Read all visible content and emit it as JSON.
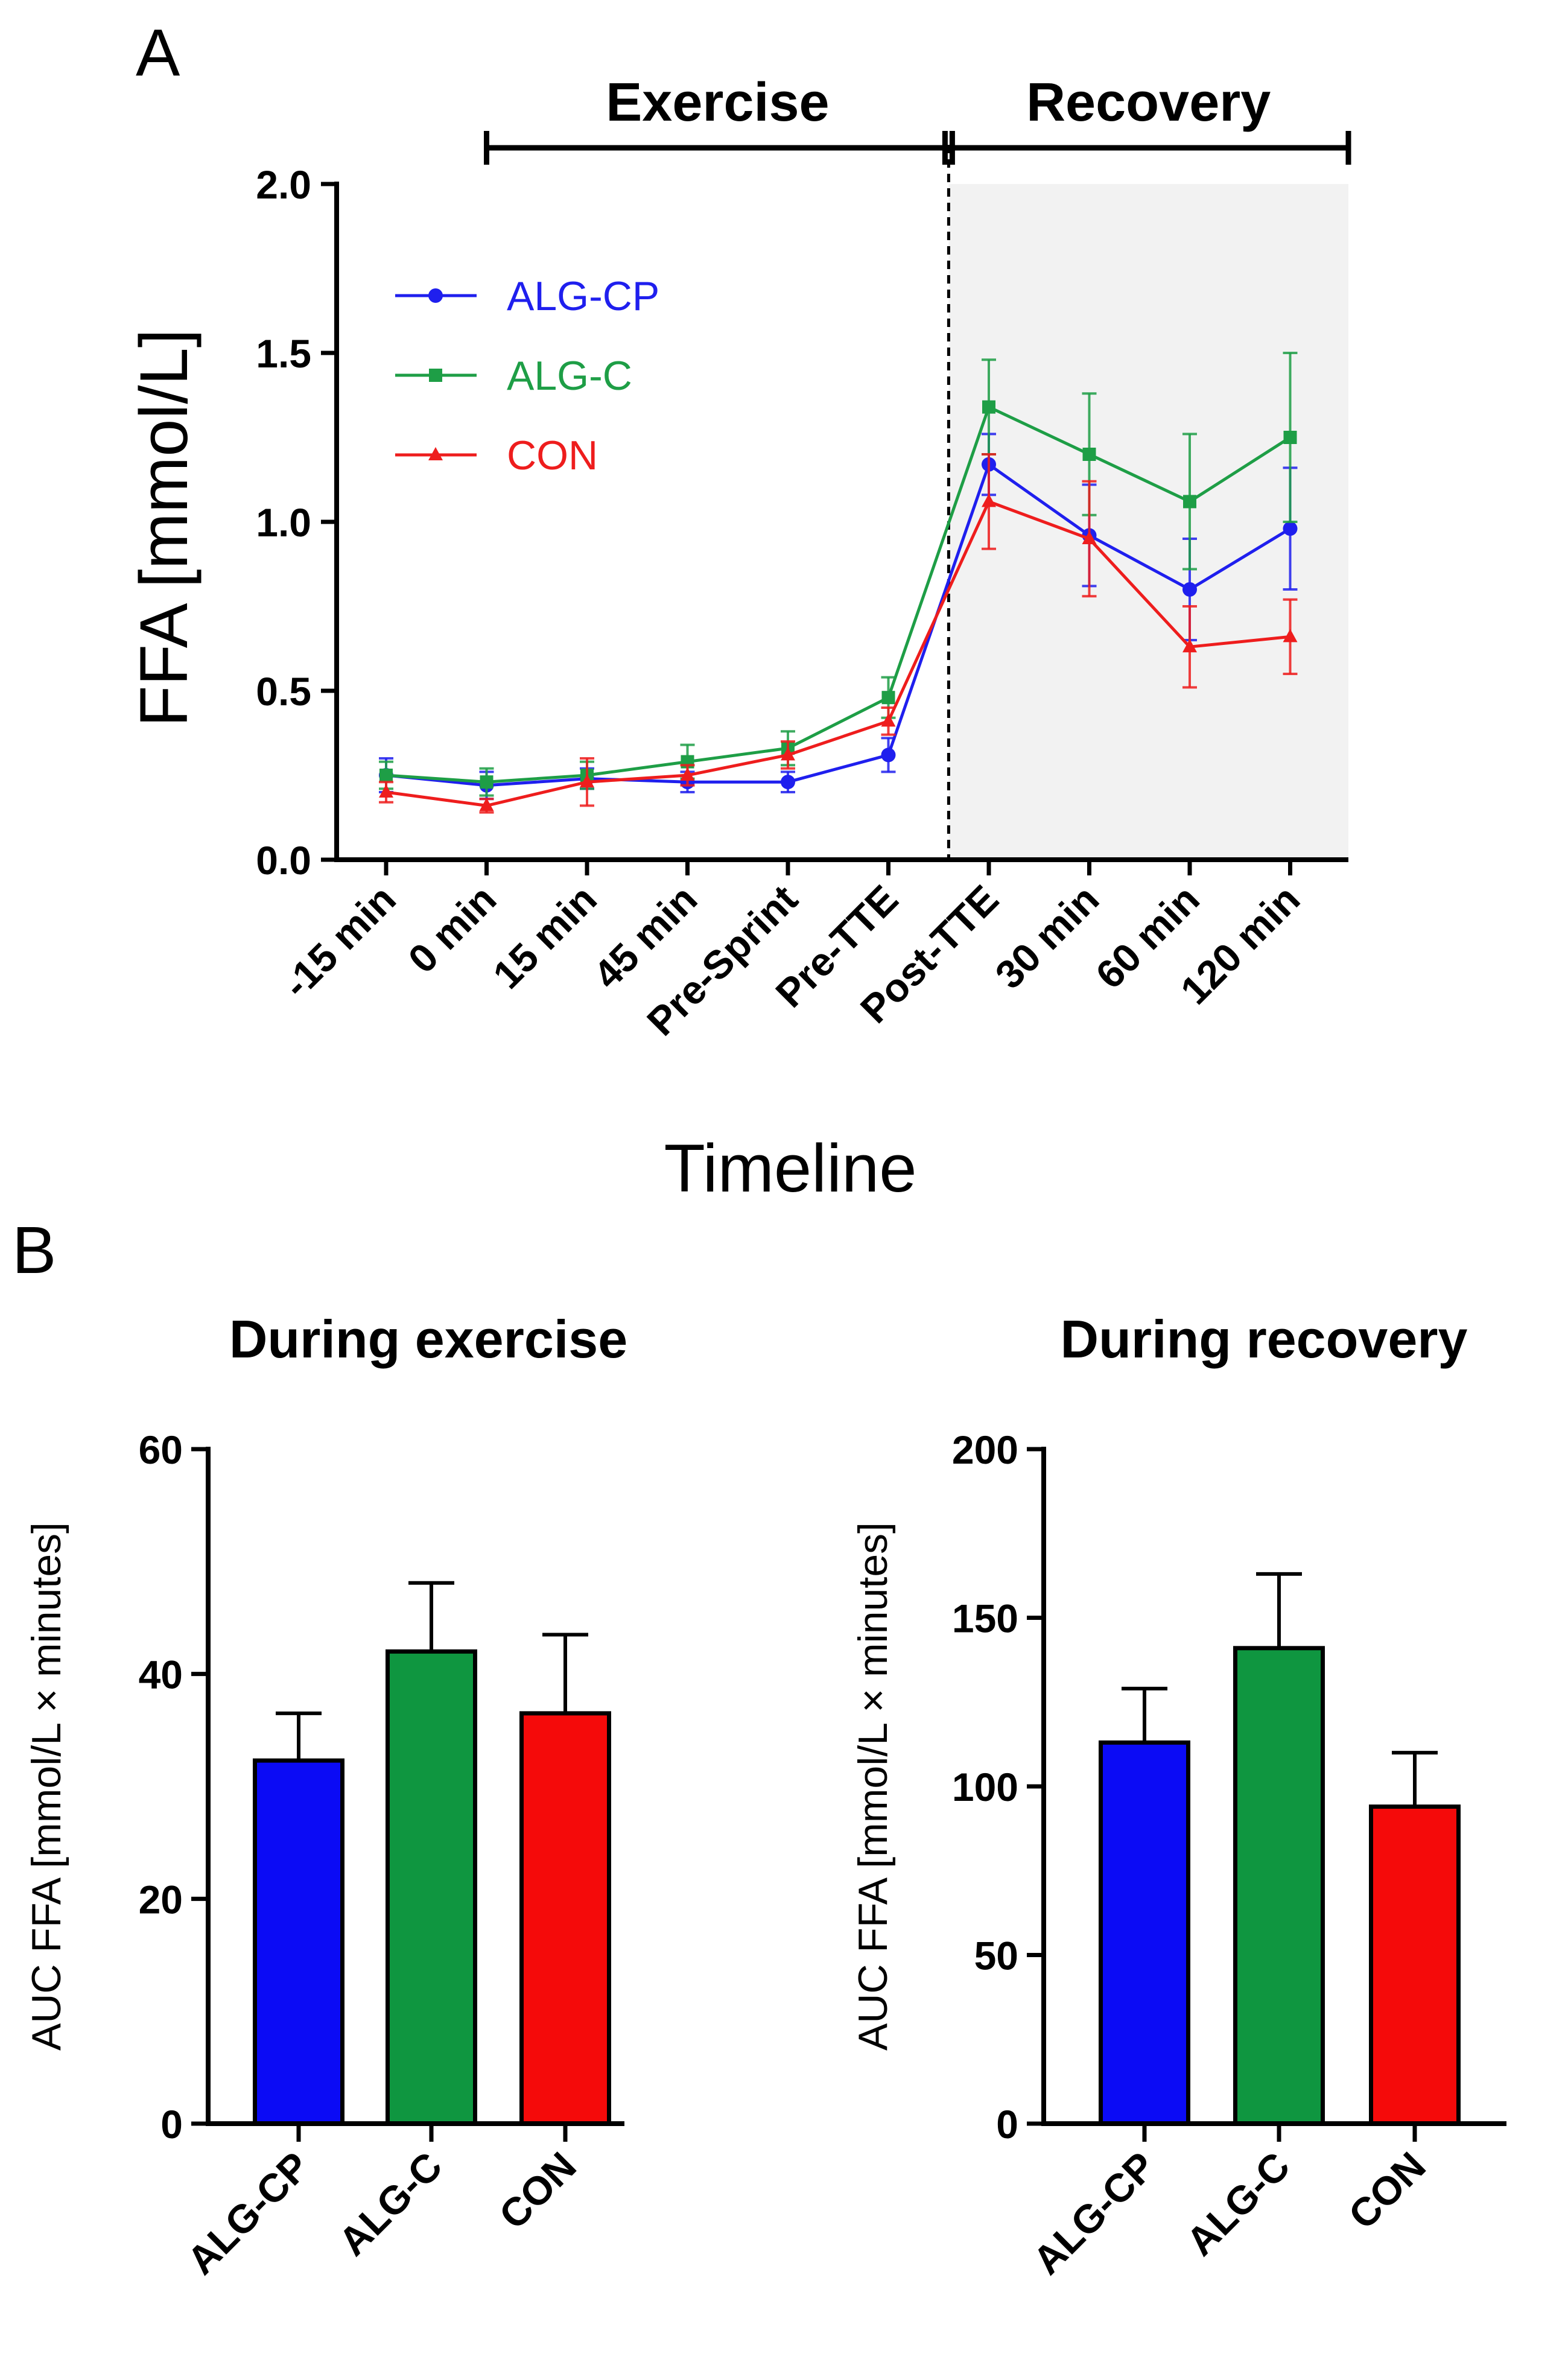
{
  "chart_data": [
    {
      "panel": "A",
      "type": "line",
      "title": "",
      "xlabel": "Timeline",
      "ylabel": "FFA [mmol/L]",
      "ylim": [
        0,
        2.0
      ],
      "yticks": [
        "0.0",
        "0.5",
        "1.0",
        "1.5",
        "2.0"
      ],
      "categories": [
        "-15 min",
        "0 min",
        "15 min",
        "45 min",
        "Pre-Sprint",
        "Pre-TTE",
        "Post-TTE",
        "30 min",
        "60 min",
        "120 min"
      ],
      "phases": [
        {
          "label": "Exercise",
          "from_index": 1,
          "to_index": 5.6
        },
        {
          "label": "Recovery",
          "from_index": 5.6,
          "to_index": 9.5,
          "shaded": true
        }
      ],
      "series": [
        {
          "name": "ALG-CP",
          "color": "#1f1fee",
          "marker": "circle",
          "values": [
            0.25,
            0.22,
            0.24,
            0.23,
            0.23,
            0.31,
            1.17,
            0.96,
            0.8,
            0.98
          ],
          "errors": [
            0.05,
            0.04,
            0.03,
            0.03,
            0.03,
            0.05,
            0.09,
            0.15,
            0.15,
            0.18
          ]
        },
        {
          "name": "ALG-C",
          "color": "#1e9e46",
          "marker": "square",
          "values": [
            0.25,
            0.23,
            0.25,
            0.29,
            0.33,
            0.48,
            1.34,
            1.2,
            1.06,
            1.25
          ],
          "errors": [
            0.04,
            0.04,
            0.04,
            0.05,
            0.05,
            0.06,
            0.14,
            0.18,
            0.2,
            0.25
          ]
        },
        {
          "name": "CON",
          "color": "#ee1d1d",
          "marker": "triangle",
          "values": [
            0.2,
            0.16,
            0.23,
            0.25,
            0.31,
            0.41,
            1.06,
            0.95,
            0.63,
            0.66
          ],
          "errors": [
            0.03,
            0.02,
            0.07,
            0.03,
            0.04,
            0.04,
            0.14,
            0.17,
            0.12,
            0.11
          ]
        }
      ],
      "legend": "top-left"
    },
    {
      "panel": "B",
      "type": "bar",
      "title": "During exercise",
      "xlabel": "",
      "ylabel": "AUC FFA [mmol/L × minutes]",
      "ylim": [
        0,
        60
      ],
      "yticks": [
        "0",
        "20",
        "40",
        "60"
      ],
      "categories": [
        "ALG-CP",
        "ALG-C",
        "CON"
      ],
      "colors": [
        "#0b0bf5",
        "#0f9640",
        "#f50a0a"
      ],
      "values": [
        32.3,
        42.0,
        36.5
      ],
      "errors": [
        4.2,
        6.1,
        7.0
      ]
    },
    {
      "panel": "B",
      "type": "bar",
      "title": "During recovery",
      "xlabel": "",
      "ylabel": "AUC FFA [mmol/L × minutes]",
      "ylim": [
        0,
        200
      ],
      "yticks": [
        "0",
        "50",
        "100",
        "150",
        "200"
      ],
      "categories": [
        "ALG-CP",
        "ALG-C",
        "CON"
      ],
      "colors": [
        "#0b0bf5",
        "#0f9640",
        "#f50a0a"
      ],
      "values": [
        113,
        141,
        94
      ],
      "errors": [
        16,
        22,
        16
      ]
    }
  ],
  "panel_labels": {
    "a": "A",
    "b": "B"
  }
}
